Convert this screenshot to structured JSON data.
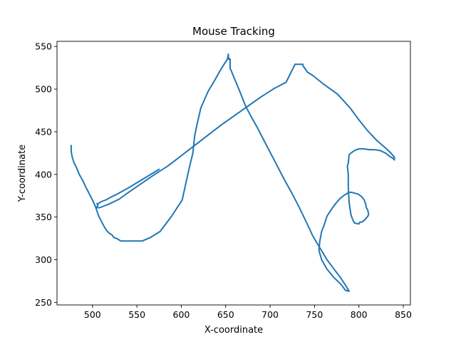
{
  "chart_data": {
    "type": "line",
    "title": "Mouse Tracking",
    "xlabel": "X-coordinate",
    "ylabel": "Y-coordinate",
    "xlim": [
      460,
      858
    ],
    "ylim": [
      247,
      556
    ],
    "xticks": [
      500,
      550,
      600,
      650,
      700,
      750,
      800,
      850
    ],
    "yticks": [
      250,
      300,
      350,
      400,
      450,
      500,
      550
    ],
    "grid": false,
    "color": "#1f77b4",
    "series": [
      {
        "x": [
          476,
          476,
          477,
          479,
          482,
          485,
          489,
          492,
          496,
          500,
          503,
          505,
          507,
          510,
          513,
          516,
          519,
          522,
          524,
          527,
          532,
          540,
          548,
          556,
          565,
          576,
          589,
          601,
          605,
          609,
          613,
          615,
          618,
          622,
          630,
          638,
          645,
          650,
          653,
          653,
          652,
          653,
          654,
          655,
          655,
          656,
          660,
          666,
          672,
          678,
          685,
          692,
          700,
          708,
          716,
          724,
          732,
          740,
          748,
          756,
          764,
          772,
          780,
          785,
          789,
          785,
          780,
          772,
          764,
          758,
          755,
          756,
          758,
          761,
          764,
          769,
          774,
          779,
          784,
          789,
          792,
          795,
          799,
          803,
          806,
          808,
          808,
          810,
          811,
          810,
          807,
          803,
          801,
          800,
          799,
          795,
          793,
          791,
          789,
          788,
          788,
          787,
          788,
          789,
          791,
          795,
          800,
          805,
          812,
          818,
          824,
          830,
          835,
          838,
          840,
          840,
          836,
          830,
          820,
          810,
          800,
          790,
          776,
          760,
          748,
          742,
          740,
          738,
          737,
          737,
          736,
          728,
          718,
          705,
          690,
          675,
          660,
          645,
          630,
          615,
          600,
          585,
          570,
          556,
          542,
          530,
          518,
          508,
          505,
          505,
          506,
          505,
          506,
          508,
          510,
          512,
          515,
          520,
          528,
          540,
          556,
          575
        ],
        "y": [
          434,
          427,
          421,
          414,
          408,
          400,
          393,
          386,
          378,
          370,
          363,
          357,
          351,
          345,
          339,
          334,
          331,
          329,
          326,
          325,
          322,
          322,
          322,
          322,
          326,
          333,
          351,
          370,
          389,
          408,
          425,
          445,
          460,
          478,
          497,
          511,
          524,
          532,
          537,
          541,
          536,
          535,
          536,
          535,
          524,
          522,
          512,
          497,
          481,
          469,
          456,
          442,
          426,
          410,
          394,
          379,
          363,
          346,
          328,
          314,
          300,
          289,
          278,
          270,
          263,
          264,
          271,
          279,
          289,
          300,
          311,
          322,
          333,
          341,
          351,
          359,
          366,
          372,
          376,
          379,
          379,
          378,
          377,
          374,
          370,
          364,
          362,
          358,
          353,
          351,
          347,
          344,
          344,
          342,
          342,
          343,
          347,
          353,
          367,
          385,
          400,
          410,
          413,
          423,
          425,
          428,
          430,
          430,
          429,
          429,
          428,
          425,
          421,
          419,
          417,
          420,
          425,
          431,
          440,
          451,
          464,
          478,
          494,
          506,
          516,
          520,
          523,
          526,
          527,
          529,
          529,
          529,
          508,
          501,
          491,
          480,
          469,
          458,
          446,
          434,
          422,
          410,
          400,
          390,
          380,
          371,
          365,
          361,
          361,
          362,
          364,
          366,
          365,
          367,
          368,
          369,
          370,
          373,
          377,
          384,
          394,
          406
        ]
      }
    ]
  }
}
